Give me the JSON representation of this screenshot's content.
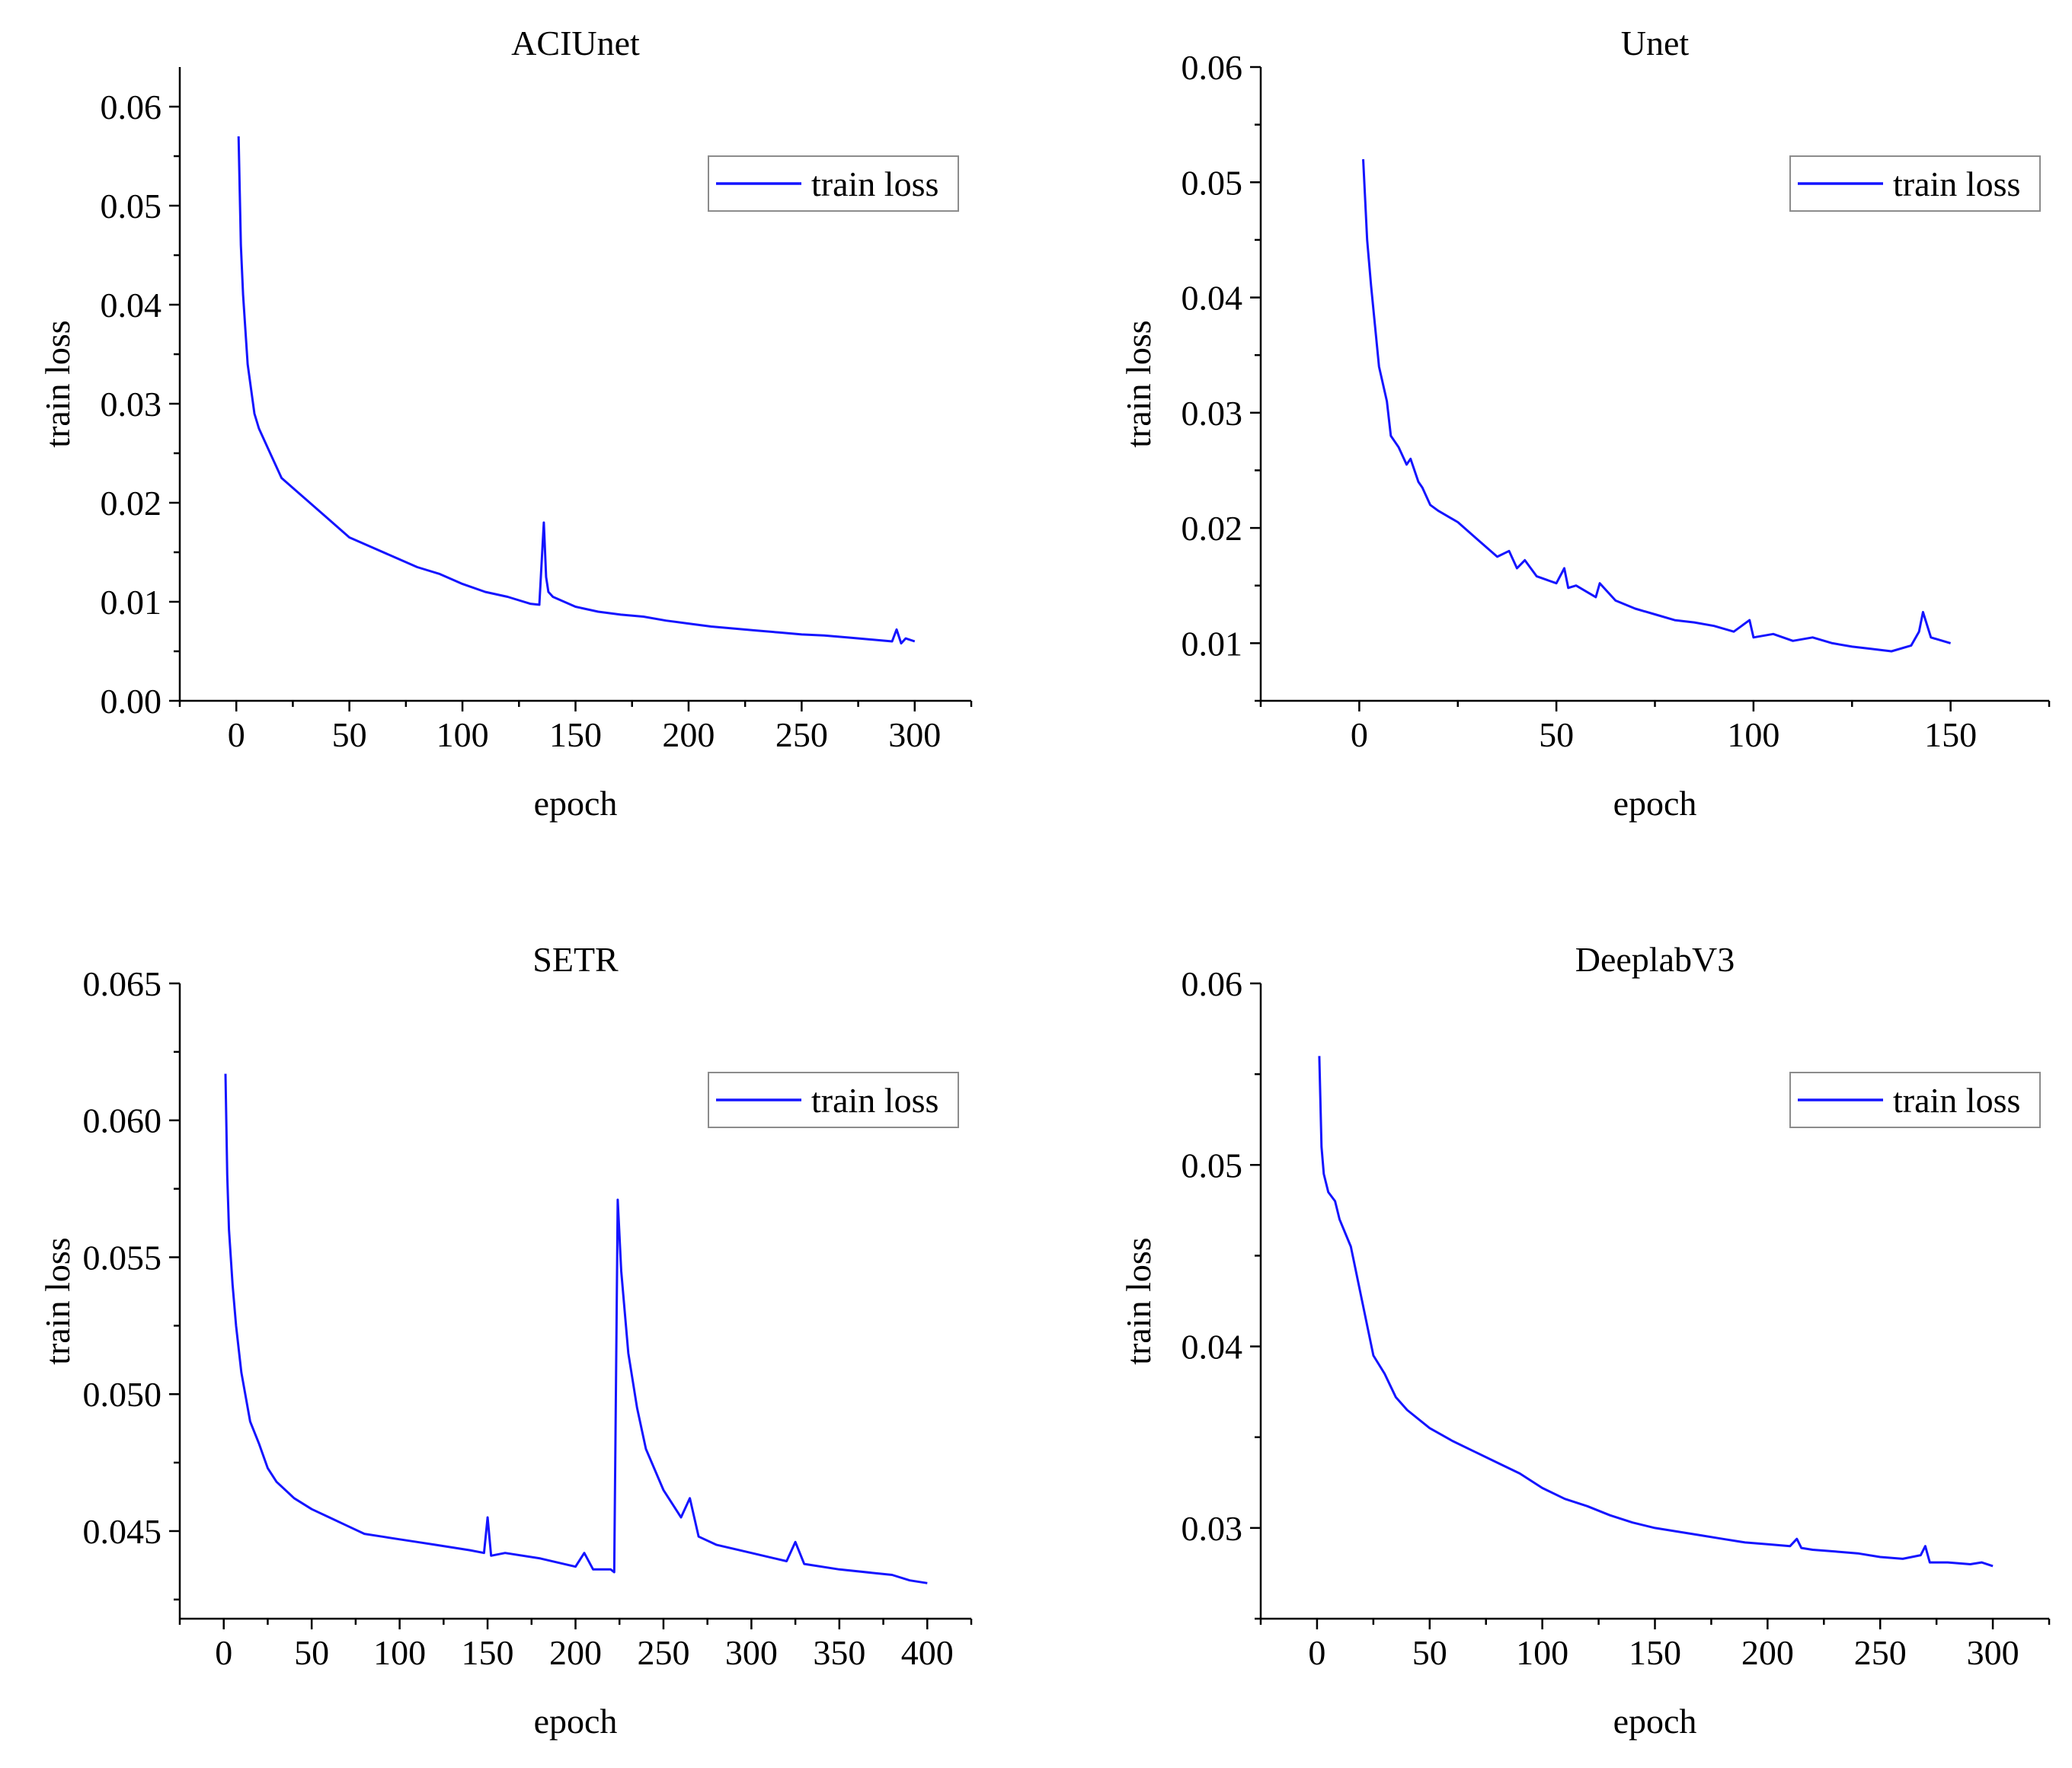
{
  "colors": {
    "series": "#1414ff",
    "axis": "#000000"
  },
  "chart_data": [
    {
      "type": "line",
      "title": "ACIUnet",
      "xlabel": "epoch",
      "ylabel": "train loss",
      "xlim": [
        -25,
        325
      ],
      "ylim": [
        0.0,
        0.064
      ],
      "xticks": [
        0,
        50,
        100,
        150,
        200,
        250,
        300
      ],
      "xtick_labels": [
        "0",
        "50",
        "100",
        "150",
        "200",
        "250",
        "300"
      ],
      "yticks": [
        0.0,
        0.01,
        0.02,
        0.03,
        0.04,
        0.05,
        0.06
      ],
      "ytick_labels": [
        "0.00",
        "0.01",
        "0.02",
        "0.03",
        "0.04",
        "0.05",
        "0.06"
      ],
      "legend": "top-right",
      "series": [
        {
          "name": "train loss",
          "x": [
            1,
            2,
            3,
            5,
            8,
            10,
            15,
            20,
            25,
            30,
            40,
            50,
            60,
            70,
            80,
            90,
            100,
            110,
            120,
            130,
            134,
            136,
            137,
            138,
            140,
            150,
            160,
            170,
            180,
            190,
            200,
            210,
            220,
            230,
            240,
            250,
            260,
            270,
            280,
            290,
            292,
            294,
            296,
            300
          ],
          "y": [
            0.057,
            0.046,
            0.041,
            0.034,
            0.029,
            0.0275,
            0.025,
            0.0225,
            0.0215,
            0.0205,
            0.0185,
            0.0165,
            0.0155,
            0.0145,
            0.0135,
            0.0128,
            0.0118,
            0.011,
            0.0105,
            0.0098,
            0.0097,
            0.018,
            0.0125,
            0.011,
            0.0105,
            0.0095,
            0.009,
            0.0087,
            0.0085,
            0.0081,
            0.0078,
            0.0075,
            0.0073,
            0.0071,
            0.0069,
            0.0067,
            0.0066,
            0.0064,
            0.0062,
            0.006,
            0.0072,
            0.0058,
            0.0063,
            0.006
          ]
        }
      ]
    },
    {
      "type": "line",
      "title": "Unet",
      "xlabel": "epoch",
      "ylabel": "train loss",
      "xlim": [
        -25,
        175
      ],
      "ylim": [
        0.005,
        0.06
      ],
      "xticks": [
        0,
        50,
        100,
        150
      ],
      "xtick_labels": [
        "0",
        "50",
        "100",
        "150"
      ],
      "yticks": [
        0.01,
        0.02,
        0.03,
        0.04,
        0.05,
        0.06
      ],
      "ytick_labels": [
        "0.01",
        "0.02",
        "0.03",
        "0.04",
        "0.05",
        "0.06"
      ],
      "legend": "top-right",
      "series": [
        {
          "name": "train loss",
          "x": [
            1,
            2,
            3,
            5,
            7,
            8,
            10,
            12,
            13,
            15,
            16,
            18,
            20,
            25,
            30,
            35,
            38,
            40,
            42,
            45,
            50,
            52,
            53,
            55,
            60,
            61,
            65,
            70,
            75,
            80,
            85,
            90,
            95,
            99,
            100,
            105,
            110,
            115,
            120,
            125,
            130,
            135,
            140,
            142,
            143,
            145,
            150
          ],
          "y": [
            0.052,
            0.045,
            0.041,
            0.034,
            0.031,
            0.028,
            0.027,
            0.0255,
            0.026,
            0.024,
            0.0235,
            0.022,
            0.0215,
            0.0205,
            0.019,
            0.0175,
            0.018,
            0.0165,
            0.0172,
            0.0158,
            0.0152,
            0.0165,
            0.0148,
            0.015,
            0.014,
            0.0152,
            0.0137,
            0.013,
            0.0125,
            0.012,
            0.0118,
            0.0115,
            0.011,
            0.012,
            0.0105,
            0.0108,
            0.0102,
            0.0105,
            0.01,
            0.0097,
            0.0095,
            0.0093,
            0.0098,
            0.011,
            0.0127,
            0.0105,
            0.01
          ]
        }
      ]
    },
    {
      "type": "line",
      "title": "SETR",
      "xlabel": "epoch",
      "ylabel": "train loss",
      "xlim": [
        -25,
        425
      ],
      "ylim": [
        0.0418,
        0.065
      ],
      "xticks": [
        0,
        50,
        100,
        150,
        200,
        250,
        300,
        350,
        400
      ],
      "xtick_labels": [
        "0",
        "50",
        "100",
        "150",
        "200",
        "250",
        "300",
        "350",
        "400"
      ],
      "yticks": [
        0.045,
        0.05,
        0.055,
        0.06,
        0.065
      ],
      "ytick_labels": [
        "0.045",
        "0.050",
        "0.055",
        "0.060",
        "0.065"
      ],
      "legend": "top-right",
      "series": [
        {
          "name": "train loss",
          "x": [
            1,
            2,
            3,
            5,
            7,
            10,
            15,
            20,
            25,
            30,
            40,
            50,
            60,
            70,
            80,
            90,
            100,
            110,
            120,
            140,
            148,
            150,
            152,
            160,
            180,
            200,
            205,
            210,
            220,
            222,
            224,
            226,
            230,
            235,
            240,
            250,
            255,
            260,
            265,
            270,
            280,
            300,
            320,
            325,
            330,
            350,
            380,
            390,
            400
          ],
          "y": [
            0.0617,
            0.058,
            0.056,
            0.054,
            0.0525,
            0.0508,
            0.049,
            0.0482,
            0.0473,
            0.0468,
            0.0462,
            0.0458,
            0.0455,
            0.0452,
            0.0449,
            0.0448,
            0.0447,
            0.0446,
            0.0445,
            0.0443,
            0.0442,
            0.0455,
            0.0441,
            0.0442,
            0.044,
            0.0437,
            0.0442,
            0.0436,
            0.0436,
            0.0435,
            0.0571,
            0.0545,
            0.0515,
            0.0495,
            0.048,
            0.0465,
            0.046,
            0.0455,
            0.0462,
            0.0448,
            0.0445,
            0.0442,
            0.0439,
            0.0446,
            0.0438,
            0.0436,
            0.0434,
            0.0432,
            0.0431
          ]
        }
      ]
    },
    {
      "type": "line",
      "title": "DeeplabV3",
      "xlabel": "epoch",
      "ylabel": "train loss",
      "xlim": [
        -25,
        325
      ],
      "ylim": [
        0.025,
        0.06
      ],
      "xticks": [
        0,
        50,
        100,
        150,
        200,
        250,
        300
      ],
      "xtick_labels": [
        "0",
        "50",
        "100",
        "150",
        "200",
        "250",
        "300"
      ],
      "yticks": [
        0.03,
        0.04,
        0.05,
        0.06
      ],
      "ytick_labels": [
        "0.03",
        "0.04",
        "0.05",
        "0.06"
      ],
      "legend": "top-right",
      "series": [
        {
          "name": "train loss",
          "x": [
            1,
            2,
            3,
            5,
            8,
            10,
            15,
            20,
            25,
            30,
            35,
            40,
            50,
            60,
            70,
            80,
            90,
            100,
            110,
            120,
            130,
            140,
            150,
            160,
            170,
            180,
            190,
            200,
            210,
            213,
            215,
            220,
            230,
            240,
            250,
            260,
            268,
            270,
            272,
            280,
            290,
            295,
            300
          ],
          "y": [
            0.056,
            0.051,
            0.0495,
            0.0485,
            0.048,
            0.047,
            0.0455,
            0.0425,
            0.0395,
            0.0385,
            0.0372,
            0.0365,
            0.0355,
            0.0348,
            0.0342,
            0.0336,
            0.033,
            0.0322,
            0.0316,
            0.0312,
            0.0307,
            0.0303,
            0.03,
            0.0298,
            0.0296,
            0.0294,
            0.0292,
            0.0291,
            0.029,
            0.0294,
            0.0289,
            0.0288,
            0.0287,
            0.0286,
            0.0284,
            0.0283,
            0.0285,
            0.029,
            0.0281,
            0.0281,
            0.028,
            0.0281,
            0.0279
          ]
        }
      ]
    }
  ]
}
